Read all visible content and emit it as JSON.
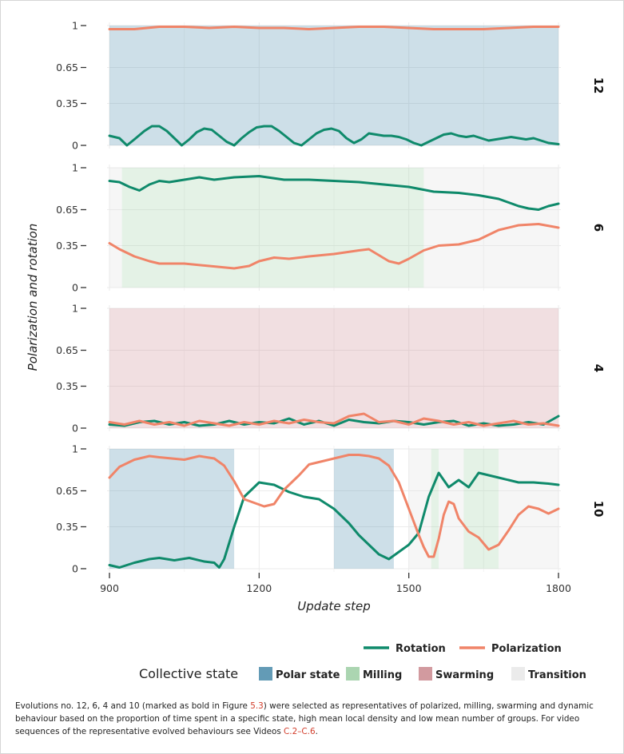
{
  "colors": {
    "rotation": "#0f8a6b",
    "polarization": "#f08468",
    "polar_state": "#5b96b2",
    "milling": "#a7d3ad",
    "swarming": "#d0959a",
    "transition": "#e2e2e2"
  },
  "chart_data": {
    "type": "line",
    "title": "",
    "xlabel": "Update step",
    "ylabel": "Polarization and rotation",
    "xlim": [
      900,
      1800
    ],
    "ylim": [
      0,
      1
    ],
    "x_ticks": [
      "900",
      "1200",
      "1500",
      "1800"
    ],
    "y_ticks": [
      "0",
      "0.35",
      "0.65",
      "1"
    ],
    "grid": true,
    "legend_placement": "bottom",
    "legend_series": [
      {
        "name": "Rotation",
        "color": "#0f8a6b"
      },
      {
        "name": "Polarization",
        "color": "#f08468"
      }
    ],
    "legend_state_title": "Collective state",
    "legend_states": [
      {
        "name": "Polar state",
        "color": "#5b96b2"
      },
      {
        "name": "Milling",
        "color": "#a7d3ad"
      },
      {
        "name": "Swarming",
        "color": "#d0959a"
      },
      {
        "name": "Transition",
        "color": "#e2e2e2"
      }
    ],
    "panels": [
      {
        "label": "12",
        "states": [
          {
            "state": "Polar state",
            "from": 900,
            "to": 1800
          }
        ],
        "series": [
          {
            "name": "Rotation",
            "x": [
              900,
              920,
              935,
              950,
              970,
              985,
              1000,
              1015,
              1030,
              1045,
              1060,
              1075,
              1090,
              1105,
              1120,
              1135,
              1150,
              1165,
              1180,
              1195,
              1210,
              1225,
              1240,
              1255,
              1270,
              1285,
              1300,
              1315,
              1330,
              1345,
              1360,
              1375,
              1390,
              1405,
              1420,
              1435,
              1450,
              1465,
              1480,
              1495,
              1510,
              1525,
              1540,
              1555,
              1570,
              1585,
              1600,
              1615,
              1630,
              1645,
              1660,
              1675,
              1690,
              1705,
              1720,
              1735,
              1750,
              1765,
              1780,
              1800
            ],
            "y": [
              0.08,
              0.06,
              0.0,
              0.05,
              0.12,
              0.16,
              0.16,
              0.12,
              0.06,
              0.0,
              0.05,
              0.11,
              0.14,
              0.13,
              0.08,
              0.03,
              0.0,
              0.06,
              0.11,
              0.15,
              0.16,
              0.16,
              0.12,
              0.07,
              0.02,
              0.0,
              0.05,
              0.1,
              0.13,
              0.14,
              0.12,
              0.06,
              0.02,
              0.05,
              0.1,
              0.09,
              0.08,
              0.08,
              0.07,
              0.05,
              0.02,
              0.0,
              0.03,
              0.06,
              0.09,
              0.1,
              0.08,
              0.07,
              0.08,
              0.06,
              0.04,
              0.05,
              0.06,
              0.07,
              0.06,
              0.05,
              0.06,
              0.04,
              0.02,
              0.01
            ]
          },
          {
            "name": "Polarization",
            "x": [
              900,
              950,
              1000,
              1050,
              1100,
              1150,
              1200,
              1250,
              1300,
              1350,
              1400,
              1450,
              1500,
              1550,
              1600,
              1650,
              1700,
              1750,
              1800
            ],
            "y": [
              0.97,
              0.97,
              0.99,
              0.99,
              0.98,
              0.99,
              0.98,
              0.98,
              0.97,
              0.98,
              0.99,
              0.99,
              0.98,
              0.97,
              0.97,
              0.97,
              0.98,
              0.99,
              0.99
            ]
          }
        ]
      },
      {
        "label": "6",
        "states": [
          {
            "state": "Transition",
            "from": 900,
            "to": 925
          },
          {
            "state": "Milling",
            "from": 925,
            "to": 1530
          },
          {
            "state": "Transition",
            "from": 1530,
            "to": 1800
          }
        ],
        "series": [
          {
            "name": "Rotation",
            "x": [
              900,
              920,
              940,
              960,
              980,
              1000,
              1020,
              1050,
              1080,
              1110,
              1150,
              1200,
              1250,
              1300,
              1350,
              1400,
              1450,
              1500,
              1550,
              1600,
              1640,
              1680,
              1700,
              1720,
              1740,
              1760,
              1780,
              1800
            ],
            "y": [
              0.89,
              0.88,
              0.84,
              0.81,
              0.86,
              0.89,
              0.88,
              0.9,
              0.92,
              0.9,
              0.92,
              0.93,
              0.9,
              0.9,
              0.89,
              0.88,
              0.86,
              0.84,
              0.8,
              0.79,
              0.77,
              0.74,
              0.71,
              0.68,
              0.66,
              0.65,
              0.68,
              0.7
            ]
          },
          {
            "name": "Polarization",
            "x": [
              900,
              920,
              950,
              980,
              1000,
              1050,
              1100,
              1150,
              1180,
              1200,
              1230,
              1260,
              1300,
              1350,
              1400,
              1420,
              1440,
              1460,
              1480,
              1500,
              1530,
              1560,
              1600,
              1640,
              1680,
              1720,
              1760,
              1800
            ],
            "y": [
              0.37,
              0.32,
              0.26,
              0.22,
              0.2,
              0.2,
              0.18,
              0.16,
              0.18,
              0.22,
              0.25,
              0.24,
              0.26,
              0.28,
              0.31,
              0.32,
              0.27,
              0.22,
              0.2,
              0.24,
              0.31,
              0.35,
              0.36,
              0.4,
              0.48,
              0.52,
              0.53,
              0.5
            ]
          }
        ]
      },
      {
        "label": "4",
        "states": [
          {
            "state": "Swarming",
            "from": 900,
            "to": 1800
          }
        ],
        "series": [
          {
            "name": "Rotation",
            "x": [
              900,
              930,
              960,
              990,
              1020,
              1050,
              1080,
              1110,
              1140,
              1170,
              1200,
              1230,
              1260,
              1290,
              1320,
              1350,
              1380,
              1410,
              1440,
              1470,
              1500,
              1530,
              1560,
              1590,
              1620,
              1650,
              1680,
              1710,
              1740,
              1770,
              1800
            ],
            "y": [
              0.03,
              0.02,
              0.05,
              0.06,
              0.03,
              0.05,
              0.02,
              0.03,
              0.06,
              0.03,
              0.05,
              0.04,
              0.08,
              0.03,
              0.06,
              0.02,
              0.07,
              0.05,
              0.04,
              0.06,
              0.05,
              0.03,
              0.05,
              0.06,
              0.02,
              0.04,
              0.02,
              0.03,
              0.05,
              0.03,
              0.1
            ]
          },
          {
            "name": "Polarization",
            "x": [
              900,
              930,
              960,
              990,
              1020,
              1050,
              1080,
              1110,
              1140,
              1170,
              1200,
              1230,
              1260,
              1290,
              1320,
              1350,
              1380,
              1410,
              1440,
              1470,
              1500,
              1530,
              1560,
              1590,
              1620,
              1650,
              1680,
              1710,
              1740,
              1770,
              1800
            ],
            "y": [
              0.05,
              0.03,
              0.06,
              0.03,
              0.05,
              0.02,
              0.06,
              0.04,
              0.02,
              0.05,
              0.03,
              0.06,
              0.04,
              0.07,
              0.05,
              0.04,
              0.1,
              0.12,
              0.05,
              0.06,
              0.03,
              0.08,
              0.06,
              0.03,
              0.05,
              0.02,
              0.04,
              0.06,
              0.03,
              0.04,
              0.02
            ]
          }
        ]
      },
      {
        "label": "10",
        "states": [
          {
            "state": "Polar state",
            "from": 900,
            "to": 1150
          },
          {
            "state": "Polar state",
            "from": 1350,
            "to": 1470
          },
          {
            "state": "Transition",
            "from": 1500,
            "to": 1545
          },
          {
            "state": "Milling",
            "from": 1545,
            "to": 1560
          },
          {
            "state": "Transition",
            "from": 1560,
            "to": 1610
          },
          {
            "state": "Milling",
            "from": 1610,
            "to": 1680
          },
          {
            "state": "Transition",
            "from": 1680,
            "to": 1800
          }
        ],
        "series": [
          {
            "name": "Rotation",
            "x": [
              900,
              920,
              950,
              980,
              1000,
              1030,
              1060,
              1090,
              1110,
              1120,
              1130,
              1150,
              1170,
              1200,
              1230,
              1260,
              1290,
              1320,
              1350,
              1380,
              1400,
              1420,
              1440,
              1460,
              1480,
              1500,
              1520,
              1540,
              1560,
              1580,
              1600,
              1620,
              1640,
              1660,
              1680,
              1700,
              1720,
              1750,
              1780,
              1800
            ],
            "y": [
              0.03,
              0.01,
              0.05,
              0.08,
              0.09,
              0.07,
              0.09,
              0.06,
              0.05,
              0.01,
              0.08,
              0.35,
              0.6,
              0.72,
              0.7,
              0.64,
              0.6,
              0.58,
              0.5,
              0.38,
              0.28,
              0.2,
              0.12,
              0.08,
              0.14,
              0.2,
              0.3,
              0.6,
              0.8,
              0.68,
              0.74,
              0.68,
              0.8,
              0.78,
              0.76,
              0.74,
              0.72,
              0.72,
              0.71,
              0.7
            ]
          },
          {
            "name": "Polarization",
            "x": [
              900,
              920,
              950,
              980,
              1000,
              1050,
              1080,
              1110,
              1130,
              1150,
              1170,
              1190,
              1210,
              1230,
              1250,
              1280,
              1300,
              1350,
              1380,
              1400,
              1420,
              1440,
              1460,
              1480,
              1500,
              1520,
              1530,
              1540,
              1550,
              1560,
              1570,
              1580,
              1590,
              1600,
              1620,
              1640,
              1660,
              1680,
              1700,
              1720,
              1740,
              1760,
              1780,
              1800
            ],
            "y": [
              0.76,
              0.85,
              0.91,
              0.94,
              0.93,
              0.91,
              0.94,
              0.92,
              0.86,
              0.73,
              0.58,
              0.55,
              0.52,
              0.54,
              0.66,
              0.78,
              0.87,
              0.92,
              0.95,
              0.95,
              0.94,
              0.92,
              0.86,
              0.72,
              0.5,
              0.28,
              0.18,
              0.1,
              0.1,
              0.25,
              0.45,
              0.56,
              0.54,
              0.42,
              0.31,
              0.26,
              0.16,
              0.2,
              0.32,
              0.45,
              0.52,
              0.5,
              0.46,
              0.5
            ]
          }
        ]
      }
    ]
  },
  "caption": {
    "part1": "Evolutions no. 12, 6, 4 and 10 (marked as bold in Figure ",
    "fig_ref": "5.3",
    "part2": ") were selected as representatives of polarized, milling, swarming and dynamic behaviour based on the proportion of time spent in a specific state, high mean local density and low mean number of groups.  For video sequences of the representative evolved behaviours see Videos ",
    "video_ref": "C.2–C.6",
    "part3": "."
  }
}
